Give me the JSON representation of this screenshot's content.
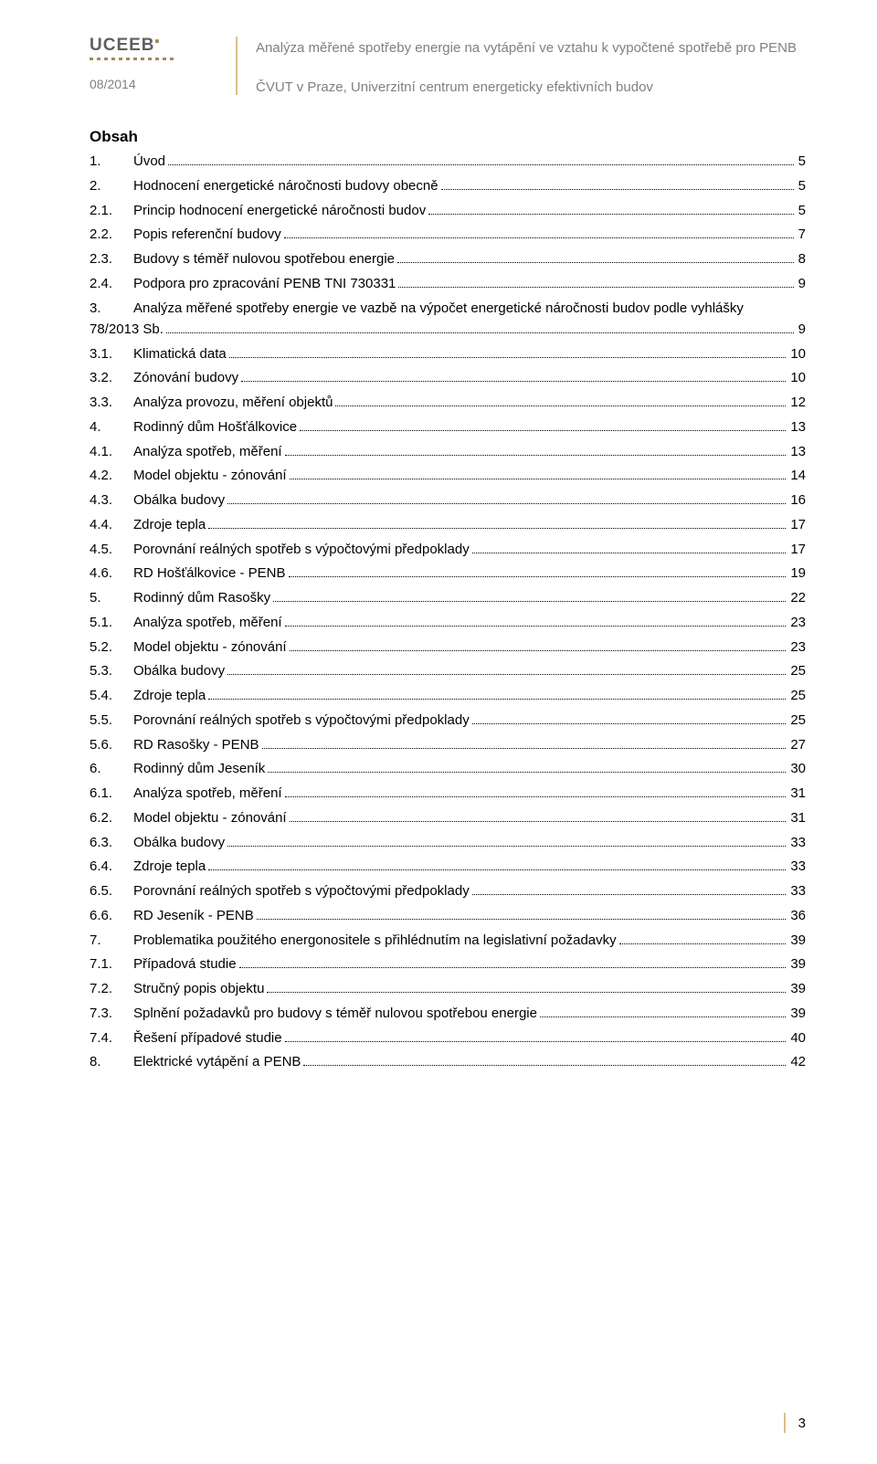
{
  "header": {
    "logo_text": "UCEEB",
    "date": "08/2014",
    "title": "Analýza měřené spotřeby energie na vytápění ve vztahu k vypočtené spotřebě pro PENB",
    "subtitle": "ČVUT v Praze, Univerzitní centrum energeticky efektivních budov"
  },
  "toc_heading": "Obsah",
  "toc": [
    {
      "num": "1.",
      "title": "Úvod",
      "page": "5",
      "level": 1
    },
    {
      "num": "2.",
      "title": "Hodnocení energetické náročnosti budovy obecně",
      "page": "5",
      "level": 1
    },
    {
      "num": "2.1.",
      "title": "Princip hodnocení energetické náročnosti budov",
      "page": "5",
      "level": 2
    },
    {
      "num": "2.2.",
      "title": "Popis referenční budovy",
      "page": "7",
      "level": 2
    },
    {
      "num": "2.3.",
      "title": "Budovy s téměř nulovou spotřebou energie",
      "page": "8",
      "level": 2
    },
    {
      "num": "2.4.",
      "title": "Podpora pro zpracování PENB TNI 730331",
      "page": "9",
      "level": 2
    },
    {
      "num": "3.",
      "title_line1": "Analýza měřené spotřeby energie ve vazbě na výpočet energetické náročnosti budov podle vyhlášky",
      "title_line2": "78/2013 Sb.",
      "page": "9",
      "level": 1,
      "multiline": true
    },
    {
      "num": "3.1.",
      "title": "Klimatická data",
      "page": "10",
      "level": 2
    },
    {
      "num": "3.2.",
      "title": "Zónování budovy",
      "page": "10",
      "level": 2
    },
    {
      "num": "3.3.",
      "title": "Analýza provozu, měření objektů",
      "page": "12",
      "level": 2
    },
    {
      "num": "4.",
      "title": "Rodinný dům Hošťálkovice",
      "page": "13",
      "level": 1
    },
    {
      "num": "4.1.",
      "title": "Analýza spotřeb, měření",
      "page": "13",
      "level": 2
    },
    {
      "num": "4.2.",
      "title": "Model objektu - zónování",
      "page": "14",
      "level": 2
    },
    {
      "num": "4.3.",
      "title": "Obálka budovy",
      "page": "16",
      "level": 2
    },
    {
      "num": "4.4.",
      "title": "Zdroje tepla",
      "page": "17",
      "level": 2
    },
    {
      "num": "4.5.",
      "title": "Porovnání reálných spotřeb s výpočtovými předpoklady",
      "page": "17",
      "level": 2
    },
    {
      "num": "4.6.",
      "title": "RD Hošťálkovice - PENB",
      "page": "19",
      "level": 2
    },
    {
      "num": "5.",
      "title": "Rodinný dům Rasošky",
      "page": "22",
      "level": 1
    },
    {
      "num": "5.1.",
      "title": "Analýza spotřeb, měření",
      "page": "23",
      "level": 2
    },
    {
      "num": "5.2.",
      "title": "Model objektu - zónování",
      "page": "23",
      "level": 2
    },
    {
      "num": "5.3.",
      "title": "Obálka budovy",
      "page": "25",
      "level": 2
    },
    {
      "num": "5.4.",
      "title": "Zdroje tepla",
      "page": "25",
      "level": 2
    },
    {
      "num": "5.5.",
      "title": "Porovnání reálných spotřeb s výpočtovými předpoklady",
      "page": "25",
      "level": 2
    },
    {
      "num": "5.6.",
      "title": "RD Rasošky - PENB",
      "page": "27",
      "level": 2
    },
    {
      "num": "6.",
      "title": "Rodinný dům Jeseník",
      "page": "30",
      "level": 1
    },
    {
      "num": "6.1.",
      "title": "Analýza spotřeb, měření",
      "page": "31",
      "level": 2
    },
    {
      "num": "6.2.",
      "title": "Model objektu - zónování",
      "page": "31",
      "level": 2
    },
    {
      "num": "6.3.",
      "title": "Obálka budovy",
      "page": "33",
      "level": 2
    },
    {
      "num": "6.4.",
      "title": "Zdroje tepla",
      "page": "33",
      "level": 2
    },
    {
      "num": "6.5.",
      "title": "Porovnání reálných spotřeb s výpočtovými předpoklady",
      "page": "33",
      "level": 2
    },
    {
      "num": "6.6.",
      "title": "RD Jeseník - PENB",
      "page": "36",
      "level": 2
    },
    {
      "num": "7.",
      "title": "Problematika použitého energonositele s přihlédnutím na legislativní požadavky",
      "page": "39",
      "level": 1
    },
    {
      "num": "7.1.",
      "title": "Případová studie",
      "page": "39",
      "level": 2
    },
    {
      "num": "7.2.",
      "title": "Stručný popis objektu",
      "page": "39",
      "level": 2
    },
    {
      "num": "7.3.",
      "title": "Splnění požadavků pro budovy s téměř nulovou spotřebou energie",
      "page": "39",
      "level": 2
    },
    {
      "num": "7.4.",
      "title": "Řešení případové studie",
      "page": "40",
      "level": 2
    },
    {
      "num": "8.",
      "title": "Elektrické vytápění a PENB",
      "page": "42",
      "level": 1
    }
  ],
  "colors": {
    "accent": "#d9c089",
    "header_text": "#808080",
    "body_text": "#000000",
    "background": "#ffffff"
  },
  "footer": {
    "page_number": "3"
  }
}
